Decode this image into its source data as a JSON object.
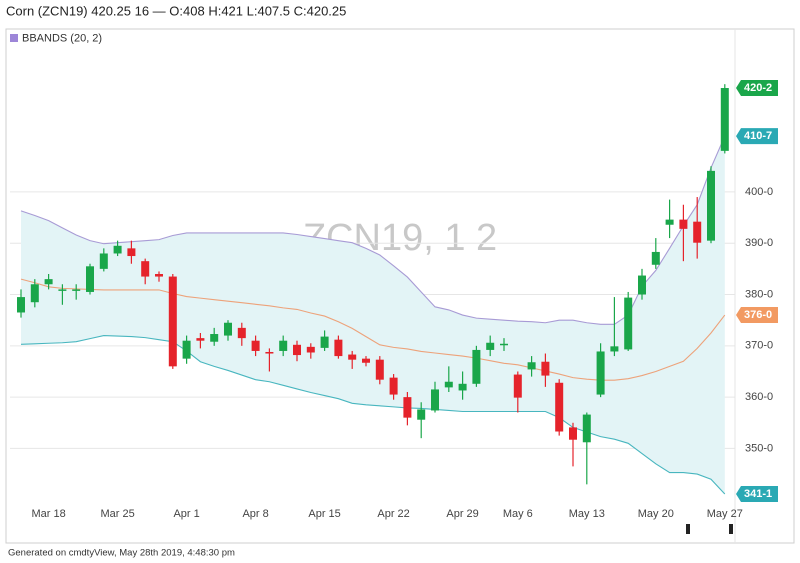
{
  "chart_data": {
    "type": "candlestick",
    "title": "Corn (ZCN19) 420.25 16 — O:408 H:421 L:407.5 C:420.25",
    "watermark": "ZCN19, 1 2",
    "footer": "Generated on cmdtyView, May 28th 2019, 4:48:30 pm",
    "up_color": "#1aa64a",
    "down_color": "#e5232b",
    "categories": [
      null,
      null,
      "Mar 18",
      null,
      null,
      null,
      null,
      "Mar 25",
      null,
      null,
      null,
      null,
      "Apr 1",
      null,
      null,
      null,
      null,
      "Apr 8",
      null,
      null,
      null,
      null,
      "Apr 15",
      null,
      null,
      null,
      null,
      "Apr 22",
      null,
      null,
      null,
      null,
      "Apr 29",
      null,
      null,
      null,
      "May 6",
      null,
      null,
      null,
      null,
      "May 13",
      null,
      null,
      null,
      null,
      "May 20",
      null,
      null,
      null,
      null,
      "May 27"
    ],
    "open": [
      376.5,
      378.5,
      382,
      381,
      381,
      380.5,
      385,
      388,
      389,
      386.5,
      384,
      383.5,
      367.5,
      371.5,
      370.8,
      372,
      373.5,
      371,
      368.8,
      369,
      370.2,
      369.8,
      369.6,
      371.2,
      368.3,
      367.5,
      367.3,
      363.8,
      360,
      355.6,
      357.4,
      361.9,
      361.3,
      362.6,
      369.2,
      370.4,
      364.4,
      365.4,
      366.9,
      362.8,
      354.1,
      351.2,
      360.5,
      368.9,
      369.3,
      380,
      385.8,
      393.6,
      394.6,
      394.2,
      390.5,
      408
    ],
    "high": [
      381,
      383,
      384,
      382,
      382,
      386,
      389,
      390.5,
      390.5,
      387,
      384.5,
      384,
      372,
      372.5,
      373.5,
      375,
      374.5,
      372,
      369.5,
      372,
      371,
      370.5,
      373,
      372,
      369,
      368,
      368,
      364.5,
      361,
      359,
      363,
      366,
      365,
      370,
      372,
      371.5,
      365,
      368,
      368.5,
      363.5,
      355,
      357,
      370.5,
      379.5,
      380.5,
      385,
      391,
      398.5,
      397.5,
      399,
      405,
      421
    ],
    "low": [
      375.5,
      377.5,
      381,
      378,
      379,
      380,
      384.5,
      387.5,
      386,
      382,
      382.5,
      365.5,
      366.5,
      369.5,
      370,
      371,
      370,
      368,
      365,
      368,
      367,
      367.5,
      369,
      367.5,
      365.5,
      366,
      362.5,
      359.5,
      354.5,
      352,
      357,
      361,
      359.5,
      362,
      368,
      369,
      357,
      364,
      362,
      352.5,
      346.5,
      343,
      360,
      368,
      369,
      379,
      385,
      391,
      386.5,
      387,
      390,
      407.5
    ],
    "close": [
      379.5,
      382,
      383,
      381,
      381,
      385.5,
      388,
      389.5,
      387.5,
      383.5,
      383.5,
      366,
      371,
      371,
      372.3,
      374.5,
      371.5,
      369,
      368.5,
      371,
      368.2,
      368.7,
      371.8,
      368,
      367.3,
      366.7,
      363.4,
      360.5,
      356,
      357.6,
      361.5,
      363,
      362.6,
      369.2,
      370.6,
      370.4,
      359.9,
      366.8,
      364.2,
      353.3,
      351.7,
      356.6,
      368.9,
      369.9,
      379.4,
      383.7,
      388.3,
      394.6,
      392.8,
      390.1,
      404.1,
      420.25
    ],
    "bbands": {
      "name": "BBANDS (20, 2)",
      "color": "#9d86d8",
      "fill": "#e3f4f6",
      "upper_color": "#a89bd5",
      "middle_color": "#eda27a",
      "lower_color": "#48b6bf",
      "upper": [
        396.3,
        395.4,
        394.4,
        393,
        391.6,
        390.5,
        389.9,
        390.1,
        390.3,
        390.5,
        390.7,
        391.5,
        392,
        392,
        392,
        392,
        392,
        392,
        392,
        392,
        391.7,
        391.3,
        390.9,
        390.5,
        390.1,
        389,
        387.7,
        385.6,
        383.4,
        380.5,
        377.6,
        377,
        376,
        375.4,
        375.2,
        375,
        374.8,
        374.7,
        374.5,
        375,
        375,
        374.5,
        374.2,
        374.2,
        376,
        381.6,
        384.7,
        389,
        393.4,
        397.5,
        404.7,
        410.875
      ],
      "middle": [
        383,
        382.3,
        381.5,
        381.2,
        381.1,
        381,
        380.9,
        380.9,
        380.9,
        380.9,
        380.9,
        380.2,
        379.6,
        379.3,
        379,
        378.7,
        378.4,
        378.1,
        377.8,
        377.4,
        377.1,
        376.4,
        375.8,
        374.7,
        373.4,
        371.8,
        370.2,
        369.7,
        369.4,
        368.9,
        368.6,
        368.3,
        368,
        367.6,
        367.1,
        366.6,
        366.3,
        365.7,
        365.1,
        364.5,
        363.8,
        363.5,
        363.3,
        363.3,
        363.6,
        364.2,
        365,
        366,
        367,
        369.5,
        372.5,
        376
      ],
      "lower": [
        370.3,
        370.4,
        370.5,
        370.6,
        370.8,
        371.4,
        372,
        371.9,
        371.8,
        371.6,
        371.2,
        370.8,
        369,
        366.9,
        366,
        365.2,
        364.3,
        363.4,
        363,
        362.3,
        361.6,
        360.9,
        360.3,
        359.7,
        358.8,
        358.5,
        358.3,
        358.1,
        357.9,
        357.8,
        357.6,
        357.4,
        357.2,
        357.2,
        357.2,
        357.2,
        357.2,
        357.2,
        357.2,
        356,
        354.1,
        353.2,
        352.3,
        351.8,
        351,
        349,
        347,
        345.3,
        345.3,
        345,
        344,
        341.125
      ]
    },
    "price_labels": [
      {
        "value": 420.25,
        "label": "420-2",
        "color": "#1aa64a"
      },
      {
        "value": 410.875,
        "label": "410-7",
        "color": "#2aa9b4"
      },
      {
        "value": 376,
        "label": "376-0",
        "color": "#f29a62"
      },
      {
        "value": 341.125,
        "label": "341-1",
        "color": "#2aa9b4"
      }
    ],
    "ylim": [
      338,
      430
    ],
    "yticks": [
      {
        "value": 350,
        "label": "350-0"
      },
      {
        "value": 360,
        "label": "360-0"
      },
      {
        "value": 370,
        "label": "370-0"
      },
      {
        "value": 380,
        "label": "380-0"
      },
      {
        "value": 390,
        "label": "390-0"
      },
      {
        "value": 400,
        "label": "400-0"
      }
    ],
    "grid": true
  }
}
